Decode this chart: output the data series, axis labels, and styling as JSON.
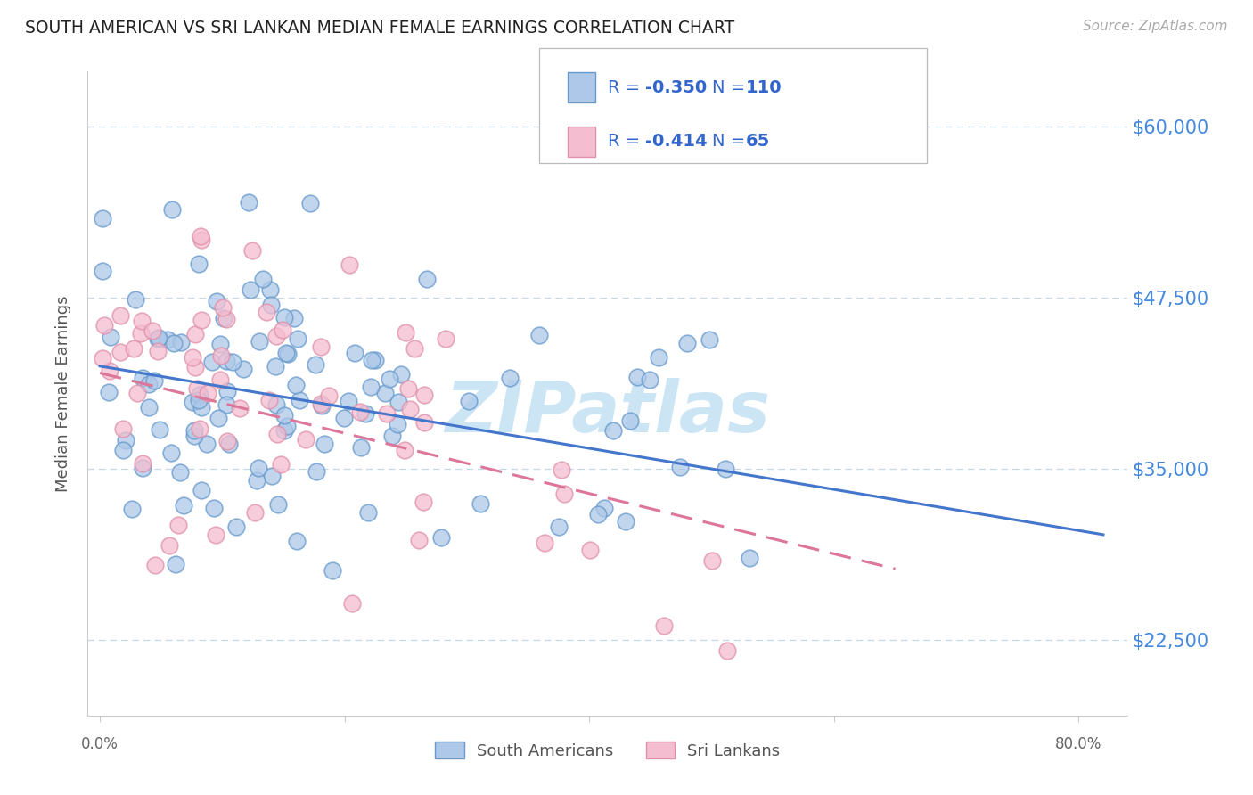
{
  "title": "SOUTH AMERICAN VS SRI LANKAN MEDIAN FEMALE EARNINGS CORRELATION CHART",
  "source": "Source: ZipAtlas.com",
  "ylabel": "Median Female Earnings",
  "ytick_labels": [
    "$22,500",
    "$35,000",
    "$47,500",
    "$60,000"
  ],
  "ytick_values": [
    22500,
    35000,
    47500,
    60000
  ],
  "ymin": 17000,
  "ymax": 64000,
  "xmin": -0.01,
  "xmax": 0.84,
  "sa_R": -0.35,
  "sa_N": 110,
  "sl_R": -0.414,
  "sl_N": 65,
  "sa_color": "#adc8e8",
  "sl_color": "#f5bdd0",
  "sa_edge_color": "#6699cc",
  "sl_edge_color": "#e090a8",
  "sa_line_color": "#4477cc",
  "sl_line_color": "#dd7799",
  "legend_sa_label": "South Americans",
  "legend_sl_label": "Sri Lankans",
  "watermark": "ZIPatlas",
  "watermark_color": "#cce5f5",
  "background_color": "#ffffff",
  "grid_color": "#c5d8e8",
  "title_color": "#222222",
  "right_axis_color": "#4488dd",
  "source_color": "#aaaaaa",
  "legend_text_color": "#3366cc",
  "sa_intercept": 42500,
  "sa_slope": -15000,
  "sl_intercept": 42000,
  "sl_slope": -22000,
  "sa_line_xmax": 0.82,
  "sl_line_xmax": 0.65
}
